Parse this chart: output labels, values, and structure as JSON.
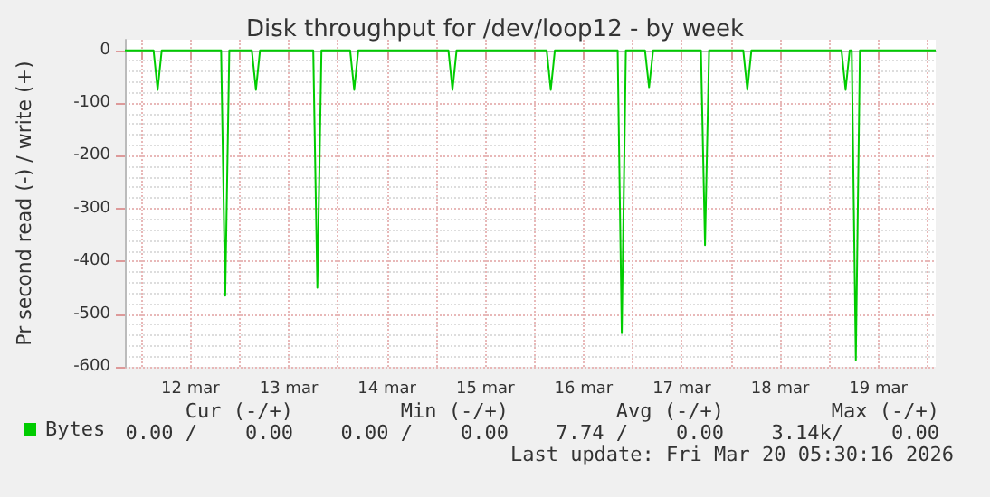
{
  "chart_data": {
    "type": "line",
    "title": "Disk throughput for /dev/loop12 - by week",
    "ylabel": "Pr second read (-) / write (+)",
    "x": [
      "2026-03-11T20:00",
      "2026-03-12T03:00",
      "2026-03-12T04:00",
      "2026-03-12T05:00",
      "2026-03-12T19:30",
      "2026-03-12T20:30",
      "2026-03-12T21:30",
      "2026-03-13T03:00",
      "2026-03-13T04:00",
      "2026-03-13T05:00",
      "2026-03-13T18:00",
      "2026-03-13T19:00",
      "2026-03-13T20:00",
      "2026-03-14T03:00",
      "2026-03-14T04:00",
      "2026-03-14T05:00",
      "2026-03-15T03:00",
      "2026-03-15T04:00",
      "2026-03-15T05:00",
      "2026-03-16T03:00",
      "2026-03-16T04:00",
      "2026-03-16T05:00",
      "2026-03-16T20:20",
      "2026-03-16T21:20",
      "2026-03-16T22:20",
      "2026-03-17T03:00",
      "2026-03-17T04:00",
      "2026-03-17T05:00",
      "2026-03-17T16:40",
      "2026-03-17T17:40",
      "2026-03-17T18:40",
      "2026-03-18T03:00",
      "2026-03-18T04:00",
      "2026-03-18T05:00",
      "2026-03-19T03:00",
      "2026-03-19T04:00",
      "2026-03-19T05:00",
      "2026-03-19T05:30",
      "2026-03-19T06:30",
      "2026-03-19T07:30",
      "2026-03-20T02:00"
    ],
    "series": [
      {
        "name": "Bytes",
        "color": "#00cc00",
        "values": [
          0,
          0,
          -75,
          0,
          0,
          -465,
          0,
          0,
          -75,
          0,
          0,
          -450,
          0,
          0,
          -75,
          0,
          0,
          -75,
          0,
          0,
          -75,
          0,
          0,
          -536,
          0,
          0,
          -70,
          0,
          0,
          -369,
          0,
          0,
          -75,
          0,
          0,
          -75,
          0,
          0,
          -587,
          0,
          0
        ]
      }
    ],
    "xlim": [
      "2026-03-11T20:00",
      "2026-03-20T02:00"
    ],
    "xticks": [
      {
        "value": "2026-03-12T00:00",
        "label": null
      },
      {
        "value": "2026-03-12T12:00",
        "label": "12 mar"
      },
      {
        "value": "2026-03-13T00:00",
        "label": null
      },
      {
        "value": "2026-03-13T12:00",
        "label": "13 mar"
      },
      {
        "value": "2026-03-14T00:00",
        "label": null
      },
      {
        "value": "2026-03-14T12:00",
        "label": "14 mar"
      },
      {
        "value": "2026-03-15T00:00",
        "label": null
      },
      {
        "value": "2026-03-15T12:00",
        "label": "15 mar"
      },
      {
        "value": "2026-03-16T00:00",
        "label": null
      },
      {
        "value": "2026-03-16T12:00",
        "label": "16 mar"
      },
      {
        "value": "2026-03-17T00:00",
        "label": null
      },
      {
        "value": "2026-03-17T12:00",
        "label": "17 mar"
      },
      {
        "value": "2026-03-18T00:00",
        "label": null
      },
      {
        "value": "2026-03-18T12:00",
        "label": "18 mar"
      },
      {
        "value": "2026-03-19T00:00",
        "label": null
      },
      {
        "value": "2026-03-19T12:00",
        "label": "19 mar"
      },
      {
        "value": "2026-03-20T00:00",
        "label": null
      }
    ],
    "ylim": [
      -600,
      20
    ],
    "yticks": [
      -600,
      -500,
      -400,
      -300,
      -200,
      -100,
      0
    ],
    "grid": true,
    "legend": "bottom left",
    "marker": "none",
    "line_style": "solid",
    "annotations": [
      "Cur (-/+)",
      "Min (-/+)",
      "Avg (-/+)",
      "Max (-/+)",
      "0.00 /    0.00",
      "0.00 /    0.00",
      "7.74 /    0.00",
      "3.14k/    0.00",
      "Last update: Fri Mar 20 05:30:16 2026"
    ]
  }
}
